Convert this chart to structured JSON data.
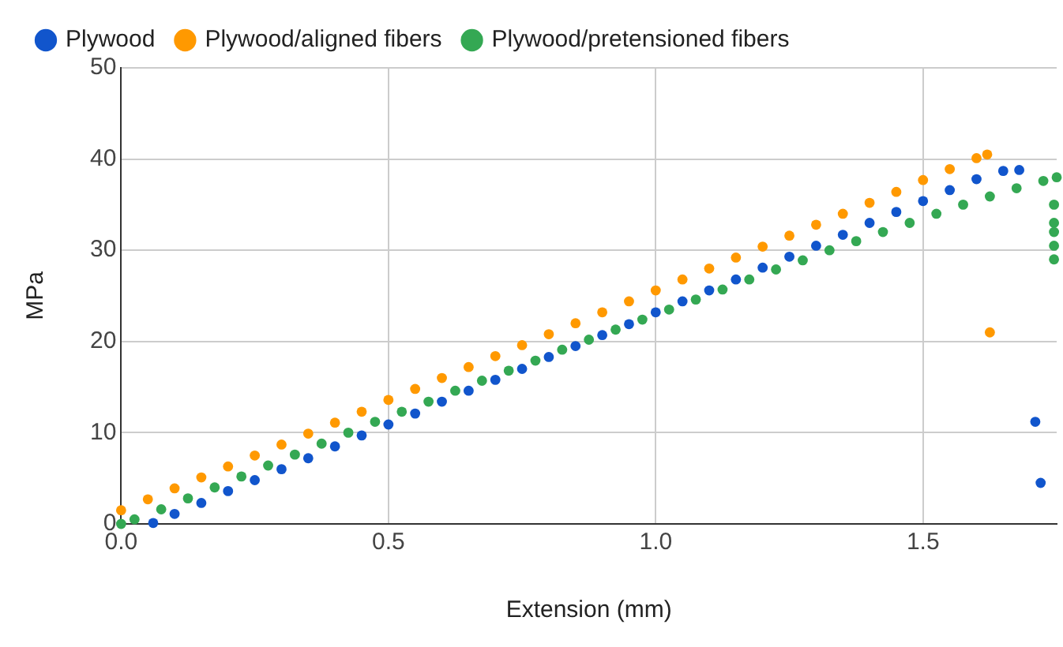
{
  "chart_data": {
    "type": "scatter",
    "xlabel": "Extension (mm)",
    "ylabel": "MPa",
    "xlim": [
      0,
      1.75
    ],
    "xticks": [
      {
        "value": 0,
        "label": "0.0"
      },
      0.5,
      {
        "value": 1,
        "label": "1.0"
      },
      1.5
    ],
    "ylim": [
      0,
      50
    ],
    "yticks": [
      0,
      10,
      20,
      30,
      40,
      50
    ],
    "grid": true,
    "legend": "top",
    "marker": "circle",
    "series": [
      {
        "name": "Plywood",
        "color": "#1155cc",
        "x": [
          0.06,
          0.1,
          0.15,
          0.2,
          0.25,
          0.3,
          0.35,
          0.4,
          0.45,
          0.5,
          0.55,
          0.6,
          0.65,
          0.7,
          0.75,
          0.8,
          0.85,
          0.9,
          0.95,
          1.0,
          1.05,
          1.1,
          1.15,
          1.2,
          1.25,
          1.3,
          1.35,
          1.4,
          1.45,
          1.5,
          1.55,
          1.6,
          1.65,
          1.68,
          1.71,
          1.72
        ],
        "values": [
          0.1,
          1.1,
          2.3,
          3.6,
          4.8,
          6.0,
          7.2,
          8.5,
          9.7,
          10.9,
          12.1,
          13.4,
          14.6,
          15.8,
          17.0,
          18.3,
          19.5,
          20.7,
          21.9,
          23.2,
          24.4,
          25.6,
          26.8,
          28.1,
          29.3,
          30.5,
          31.7,
          33.0,
          34.2,
          35.4,
          36.6,
          37.8,
          38.7,
          38.8,
          11.2,
          4.5
        ]
      },
      {
        "name": "Plywood/aligned fibers",
        "color": "#ff9900",
        "x": [
          0,
          0.05,
          0.1,
          0.15,
          0.2,
          0.25,
          0.3,
          0.35,
          0.4,
          0.45,
          0.5,
          0.55,
          0.6,
          0.65,
          0.7,
          0.75,
          0.8,
          0.85,
          0.9,
          0.95,
          1.0,
          1.05,
          1.1,
          1.15,
          1.2,
          1.25,
          1.3,
          1.35,
          1.4,
          1.45,
          1.5,
          1.55,
          1.6,
          1.62,
          1.625
        ],
        "values": [
          1.5,
          2.7,
          3.9,
          5.1,
          6.3,
          7.5,
          8.7,
          9.9,
          11.1,
          12.3,
          13.6,
          14.8,
          16.0,
          17.2,
          18.4,
          19.6,
          20.8,
          22.0,
          23.2,
          24.4,
          25.6,
          26.8,
          28.0,
          29.2,
          30.4,
          31.6,
          32.8,
          34.0,
          35.2,
          36.4,
          37.7,
          38.9,
          40.1,
          40.5,
          21.0
        ]
      },
      {
        "name": "Plywood/pretensioned fibers",
        "color": "#34a853",
        "x": [
          0,
          0.025,
          0.075,
          0.125,
          0.175,
          0.225,
          0.275,
          0.325,
          0.375,
          0.425,
          0.475,
          0.525,
          0.575,
          0.625,
          0.675,
          0.725,
          0.775,
          0.825,
          0.875,
          0.925,
          0.975,
          1.025,
          1.075,
          1.125,
          1.175,
          1.225,
          1.275,
          1.325,
          1.375,
          1.425,
          1.475,
          1.525,
          1.575,
          1.625,
          1.675,
          1.725,
          1.75,
          1.745,
          1.745,
          1.745,
          1.745,
          1.745
        ],
        "values": [
          0,
          0.5,
          1.6,
          2.8,
          4.0,
          5.2,
          6.4,
          7.6,
          8.8,
          10.0,
          11.2,
          12.3,
          13.4,
          14.6,
          15.7,
          16.8,
          17.9,
          19.1,
          20.2,
          21.3,
          22.4,
          23.5,
          24.6,
          25.7,
          26.8,
          27.9,
          28.9,
          30.0,
          31.0,
          32.0,
          33.0,
          34.0,
          35.0,
          35.9,
          36.8,
          37.6,
          38.0,
          35,
          33,
          32,
          30.5,
          29
        ]
      }
    ]
  }
}
